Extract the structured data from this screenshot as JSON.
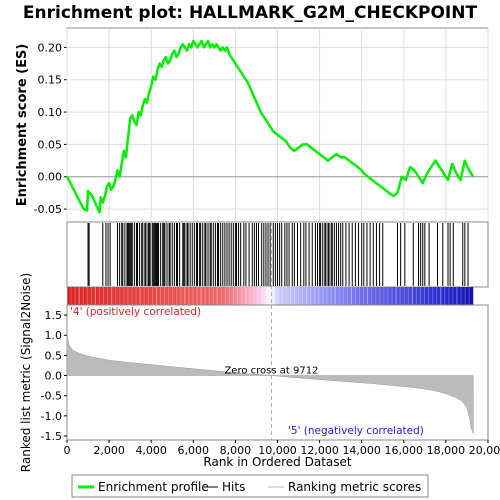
{
  "title": "Enrichment plot: HALLMARK_G2M_CHECKPOINT",
  "chart_data": {
    "type": "line",
    "panels": {
      "enrichment": {
        "ylabel": "Enrichment score (ES)",
        "ylim": [
          -0.07,
          0.23
        ],
        "yticks": [
          -0.05,
          0.0,
          0.05,
          0.1,
          0.15,
          0.2
        ],
        "ytick_labels": [
          "-0.05",
          "0.00",
          "0.05",
          "0.10",
          "0.15",
          "0.20"
        ],
        "line_color": "#00ee00",
        "series": [
          {
            "x": [
              0,
              200,
              400,
              600,
              800,
              950,
              1000,
              1200,
              1400,
              1550,
              1600,
              1700,
              1800,
              1900,
              2000,
              2100,
              2200,
              2300,
              2400,
              2500,
              2600,
              2700,
              2800,
              2900,
              3000,
              3100,
              3200,
              3300,
              3400,
              3500,
              3600,
              3700,
              3800,
              3900,
              4000,
              4100,
              4200,
              4300,
              4400,
              4500,
              4600,
              4700,
              4800,
              4900,
              5000,
              5100,
              5200,
              5300,
              5400,
              5500,
              5600,
              5700,
              5800,
              5900,
              6000,
              6100,
              6200,
              6300,
              6400,
              6500,
              6600,
              6700,
              6800,
              6900,
              7000,
              7100,
              7200,
              7300,
              7400,
              7500,
              7600,
              7700,
              7800,
              7900,
              8000,
              8200,
              8400,
              8600,
              8800,
              9000,
              9200,
              9400,
              9600,
              9800,
              10000,
              10200,
              10400,
              10600,
              10800,
              11000,
              11200,
              11400,
              11600,
              11800,
              12000,
              12200,
              12400,
              12600,
              12800,
              13000,
              13200,
              13400,
              13600,
              13800,
              14000,
              14100,
              14300,
              14500,
              14700,
              14900,
              15100,
              15300,
              15500,
              15700,
              15900,
              16100,
              16300,
              16500,
              16700,
              16900,
              17100,
              17300,
              17500,
              17700,
              17900,
              18100,
              18300,
              18500,
              18700,
              18900,
              19100,
              19300
            ],
            "y": [
              0.0,
              -0.012,
              -0.025,
              -0.038,
              -0.05,
              -0.052,
              -0.022,
              -0.03,
              -0.045,
              -0.055,
              -0.032,
              -0.04,
              -0.03,
              -0.015,
              -0.01,
              -0.02,
              -0.015,
              -0.005,
              0.01,
              0.0,
              0.02,
              0.04,
              0.03,
              0.06,
              0.09,
              0.095,
              0.085,
              0.08,
              0.1,
              0.095,
              0.11,
              0.12,
              0.115,
              0.13,
              0.14,
              0.155,
              0.15,
              0.165,
              0.175,
              0.17,
              0.18,
              0.185,
              0.175,
              0.18,
              0.19,
              0.195,
              0.185,
              0.19,
              0.2,
              0.205,
              0.2,
              0.195,
              0.205,
              0.2,
              0.21,
              0.205,
              0.2,
              0.205,
              0.21,
              0.2,
              0.205,
              0.21,
              0.2,
              0.205,
              0.2,
              0.205,
              0.2,
              0.195,
              0.2,
              0.195,
              0.2,
              0.19,
              0.185,
              0.18,
              0.175,
              0.165,
              0.155,
              0.145,
              0.13,
              0.115,
              0.1,
              0.09,
              0.08,
              0.07,
              0.065,
              0.06,
              0.055,
              0.045,
              0.04,
              0.045,
              0.05,
              0.05,
              0.045,
              0.04,
              0.035,
              0.03,
              0.025,
              0.03,
              0.035,
              0.03,
              0.03,
              0.025,
              0.02,
              0.015,
              0.01,
              0.005,
              0.0,
              -0.005,
              -0.01,
              -0.015,
              -0.02,
              -0.025,
              -0.03,
              -0.025,
              0.0,
              -0.005,
              0.015,
              0.01,
              0.0,
              -0.01,
              0.005,
              0.015,
              0.025,
              0.015,
              0.005,
              -0.005,
              0.02,
              0.005,
              -0.005,
              0.025,
              0.01,
              0.0
            ]
          }
        ]
      },
      "hits": {
        "positions": [
          1000,
          1050,
          1700,
          1850,
          1950,
          2050,
          2400,
          2500,
          2600,
          2650,
          2750,
          2850,
          2900,
          2950,
          3000,
          3050,
          3100,
          3200,
          3300,
          3350,
          3450,
          3550,
          3600,
          3700,
          3750,
          3850,
          3900,
          3950,
          4050,
          4100,
          4150,
          4200,
          4250,
          4300,
          4350,
          4450,
          4550,
          4600,
          4650,
          4750,
          4850,
          4900,
          5000,
          5100,
          5200,
          5250,
          5350,
          5500,
          5550,
          5600,
          5700,
          5750,
          5850,
          5950,
          6050,
          6150,
          6200,
          6300,
          6350,
          6450,
          6550,
          6600,
          6700,
          6800,
          6850,
          6950,
          7050,
          7150,
          7200,
          7300,
          7400,
          7500,
          7600,
          7700,
          7800,
          7900,
          8000,
          8050,
          8150,
          8250,
          8400,
          8500,
          8650,
          8800,
          8900,
          9000,
          9100,
          9250,
          9350,
          9450,
          9550,
          9650,
          9800,
          9900,
          10000,
          10100,
          10200,
          10350,
          10450,
          10550,
          10700,
          10800,
          10950,
          11100,
          11250,
          11350,
          11500,
          11650,
          11800,
          11900,
          12000,
          12050,
          12150,
          12250,
          12300,
          12400,
          12450,
          12550,
          12600,
          12700,
          12800,
          12900,
          13000,
          13100,
          13250,
          13400,
          13550,
          13700,
          13850,
          14000,
          14100,
          14250,
          14400,
          14550,
          14700,
          14850,
          15000,
          15700,
          15850,
          16050,
          16450,
          16700,
          16800,
          16900,
          17000,
          17200,
          17600,
          17850,
          18100,
          18200,
          18350,
          18800,
          18900,
          19050
        ]
      },
      "ranked_metric": {
        "ylabel": "Ranked list metric (Signal2Noise)",
        "xlabel": "Rank in Ordered Dataset",
        "ylim": [
          -1.6,
          1.75
        ],
        "yticks": [
          -1.5,
          -1.0,
          -0.5,
          0.0,
          0.5,
          1.0,
          1.5
        ],
        "ytick_labels": [
          "-1.5",
          "-1.0",
          "-0.5",
          "0.0",
          "0.5",
          "1.0",
          "1.5"
        ],
        "x": [
          0,
          100,
          300,
          600,
          1000,
          2000,
          3000,
          4000,
          5000,
          6000,
          7000,
          8000,
          9000,
          9712,
          10500,
          11500,
          12500,
          13500,
          14500,
          15500,
          16500,
          17500,
          18000,
          18500,
          18800,
          19000,
          19100,
          19200,
          19300
        ],
        "values": [
          1.0,
          0.75,
          0.62,
          0.55,
          0.48,
          0.38,
          0.32,
          0.27,
          0.22,
          0.17,
          0.12,
          0.07,
          0.03,
          0.0,
          -0.04,
          -0.08,
          -0.12,
          -0.16,
          -0.2,
          -0.25,
          -0.3,
          -0.38,
          -0.45,
          -0.55,
          -0.65,
          -0.8,
          -1.0,
          -1.3,
          -1.45
        ],
        "zero_cross_label": "Zero cross at 9712",
        "zero_cross_x": 9712,
        "positive_label": "'4' (positively correlated)",
        "negative_label": "'5' (negatively correlated)",
        "positive_color": "#dd2222",
        "negative_color": "#2222cc"
      }
    },
    "xlim": [
      0,
      20000
    ],
    "xticks": [
      0,
      2000,
      4000,
      6000,
      8000,
      10000,
      12000,
      14000,
      16000,
      18000,
      20000
    ],
    "xtick_labels": [
      "0",
      "2,000",
      "4,000",
      "6,000",
      "8,000",
      "10,000",
      "12,000",
      "14,000",
      "16,000",
      "18,000",
      "20,000"
    ],
    "dataset_size": 19300,
    "legend": {
      "placement": "bottom",
      "items": [
        {
          "label": "Enrichment profile",
          "color": "#00ee00"
        },
        {
          "label": "Hits",
          "color": "#000000"
        },
        {
          "label": "Ranking metric scores",
          "color": "#bbbbbb"
        }
      ]
    }
  }
}
